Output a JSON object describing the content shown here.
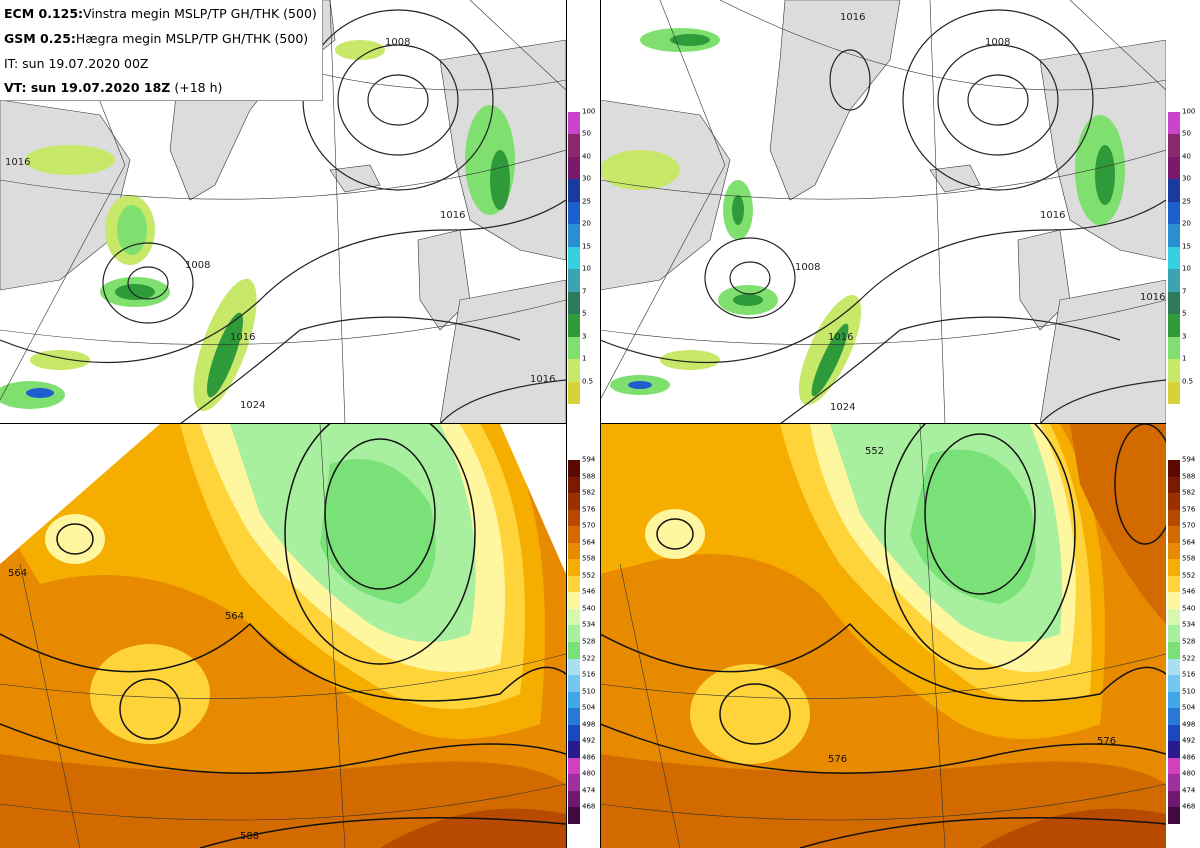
{
  "header": {
    "line1_bold": "ECM 0.125:",
    "line1_text": "Vinstra megin MSLP/TP GH/THK (500)",
    "line2_bold": "GSM 0.25:",
    "line2_text": "Hægra megin MSLP/TP GH/THK (500)",
    "line3_text": "IT: sun 19.07.2020 00Z",
    "line4_bold": "VT: sun 19.07.2020 18Z",
    "line4_text": "(+18 h)"
  },
  "precip_colorbar": {
    "labels": [
      "100",
      "50",
      "40",
      "30",
      "25",
      "20",
      "15",
      "10",
      "7",
      "5",
      "3",
      "1",
      "0.5"
    ],
    "colors": [
      "#cc44cc",
      "#8a2a6e",
      "#7a1a6a",
      "#1a3aa0",
      "#1e5fd0",
      "#2a8fd0",
      "#38d0e0",
      "#3aa5b0",
      "#2f7a5a",
      "#2f9a3a",
      "#7fe070",
      "#c8e86a",
      "#d6d23a"
    ]
  },
  "gh_colorbar": {
    "labels": [
      "594",
      "588",
      "582",
      "576",
      "570",
      "564",
      "558",
      "552",
      "546",
      "540",
      "534",
      "528",
      "522",
      "516",
      "510",
      "504",
      "498",
      "492",
      "486",
      "480",
      "474",
      "468"
    ],
    "colors": [
      "#5a0a00",
      "#7a1a00",
      "#9a3000",
      "#b84a00",
      "#d26a00",
      "#e78a00",
      "#f5ae00",
      "#ffd43a",
      "#fff6a0",
      "#d8f8b0",
      "#a8f0a0",
      "#7ae078",
      "#a8e0f0",
      "#74c8f0",
      "#40a8e8",
      "#2a78d8",
      "#1a48c0",
      "#2a1a90",
      "#d040c0",
      "#a030a0",
      "#701870",
      "#400a40"
    ]
  },
  "maps": {
    "tl_isobars": [
      "1008",
      "1016",
      "1016",
      "1008",
      "1016",
      "1024",
      "1016"
    ],
    "tr_isobars": [
      "1008",
      "1016",
      "1008",
      "1016",
      "1024",
      "1016",
      "1016"
    ],
    "bl_contours": [
      "564",
      "564",
      "588"
    ],
    "br_contours": [
      "552",
      "576",
      "576"
    ]
  }
}
